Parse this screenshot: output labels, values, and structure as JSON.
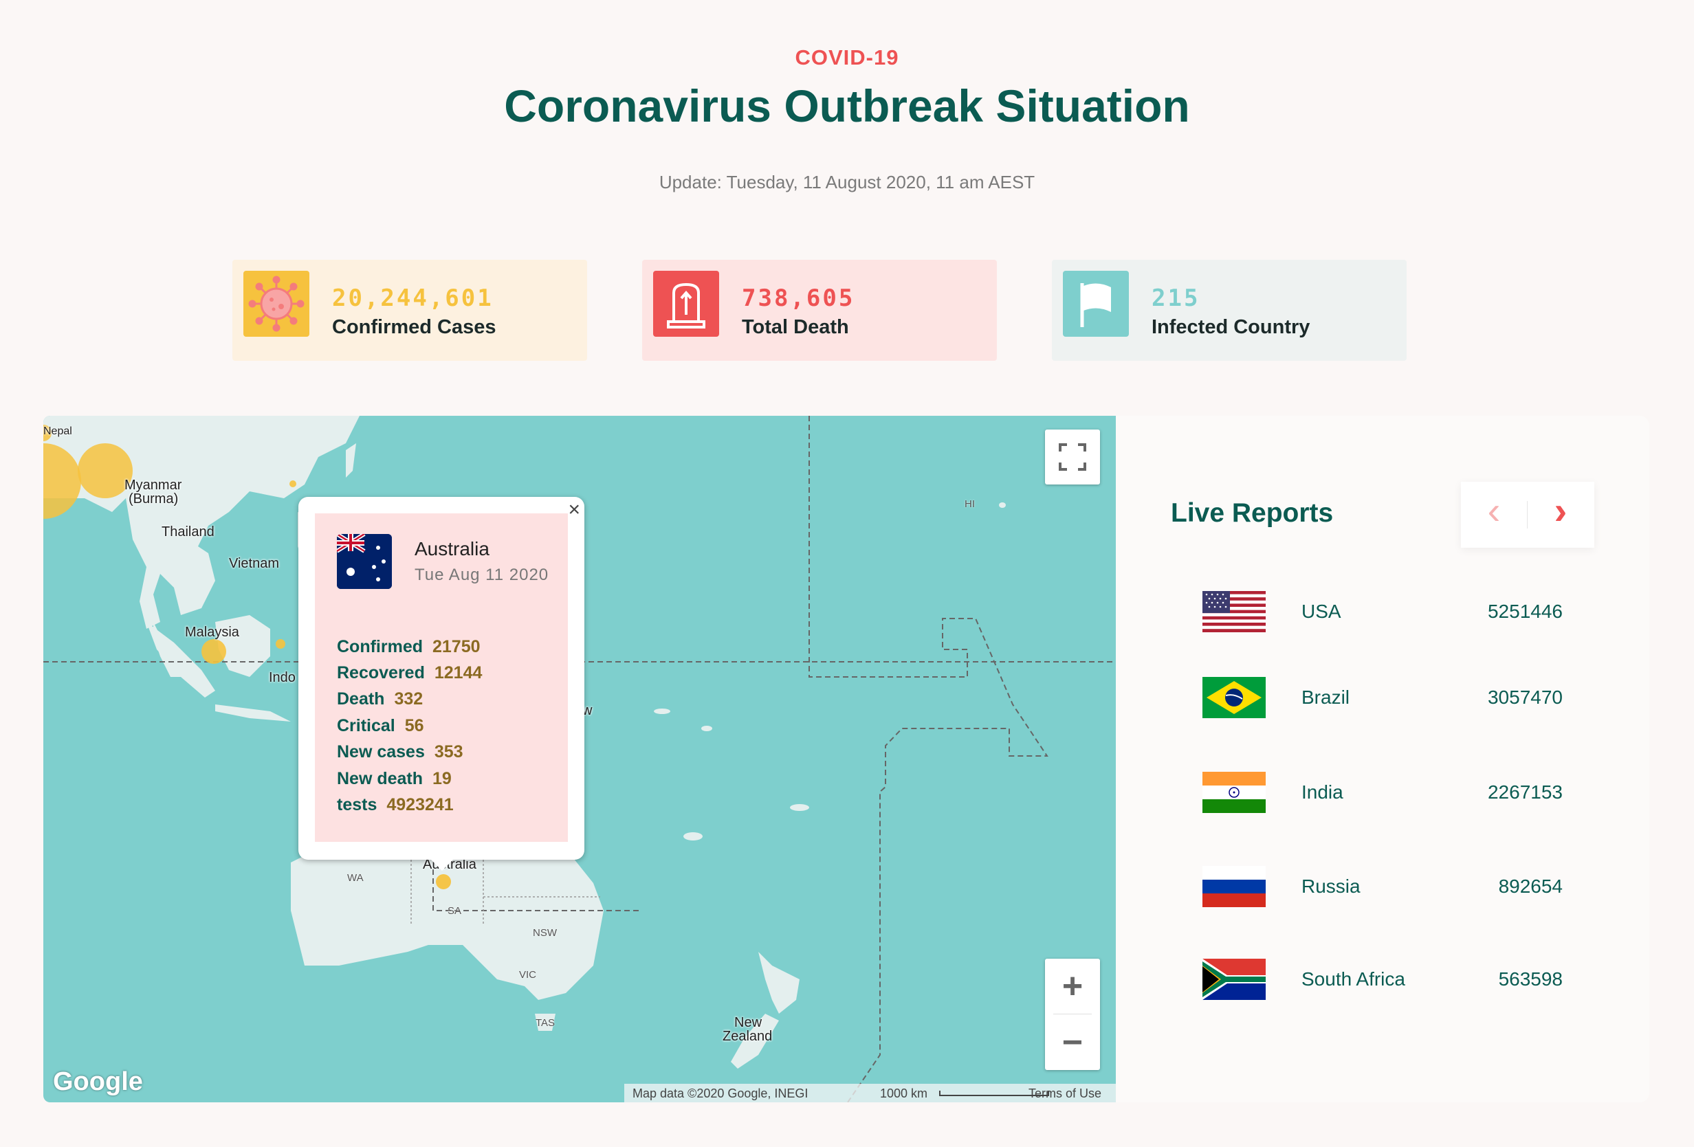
{
  "header": {
    "kicker": "COVID-19",
    "title": "Coronavirus Outbreak Situation",
    "update": "Update: Tuesday, 11 August 2020, 11 am AEST"
  },
  "stats": [
    {
      "value": "20,244,601",
      "label": "Confirmed Cases",
      "icon": "virus-icon",
      "accent": "#f6c23e",
      "bg": "#fdf1e0"
    },
    {
      "value": "738,605",
      "label": "Total Death",
      "icon": "tombstone-icon",
      "accent": "#ee5253",
      "bg": "#fde4e3"
    },
    {
      "value": "215",
      "label": "Infected Country",
      "icon": "flag-icon",
      "accent": "#7ecfcd",
      "bg": "#eef2f1"
    }
  ],
  "map": {
    "labels": {
      "nepal": "Nepal",
      "myanmar": "Myanmar",
      "burma": "(Burma)",
      "thailand": "Thailand",
      "vietnam": "Vietnam",
      "malaysia": "Malaysia",
      "indo": "Indo",
      "australia": "Australia",
      "new": "New",
      "zealand": "Zealand",
      "wa": "WA",
      "sa": "SA",
      "nsw": "NSW",
      "vic": "VIC",
      "tas": "TAS",
      "hi": "HI",
      "w": "w"
    },
    "attribution": "Map data ©2020 Google, INEGI",
    "scale": "1000 km",
    "terms": "Terms of Use",
    "logo": "Google",
    "zoom_in": "+",
    "zoom_out": "−",
    "popup": {
      "country": "Australia",
      "date": "Tue Aug 11 2020",
      "close": "×",
      "rows": [
        {
          "key": "Confirmed",
          "value": "21750"
        },
        {
          "key": "Recovered",
          "value": "12144"
        },
        {
          "key": "Death",
          "value": "332"
        },
        {
          "key": "Critical",
          "value": "56"
        },
        {
          "key": "New cases",
          "value": "353"
        },
        {
          "key": "New death",
          "value": "19"
        },
        {
          "key": "tests",
          "value": "4923241"
        }
      ]
    }
  },
  "live_reports": {
    "title": "Live Reports",
    "prev": "‹",
    "next": "›",
    "rows": [
      {
        "country": "USA",
        "value": "5251446",
        "flag": "usa-flag-icon"
      },
      {
        "country": "Brazil",
        "value": "3057470",
        "flag": "brazil-flag-icon"
      },
      {
        "country": "India",
        "value": "2267153",
        "flag": "india-flag-icon"
      },
      {
        "country": "Russia",
        "value": "892654",
        "flag": "russia-flag-icon"
      },
      {
        "country": "South Africa",
        "value": "563598",
        "flag": "south-africa-flag-icon"
      }
    ]
  }
}
